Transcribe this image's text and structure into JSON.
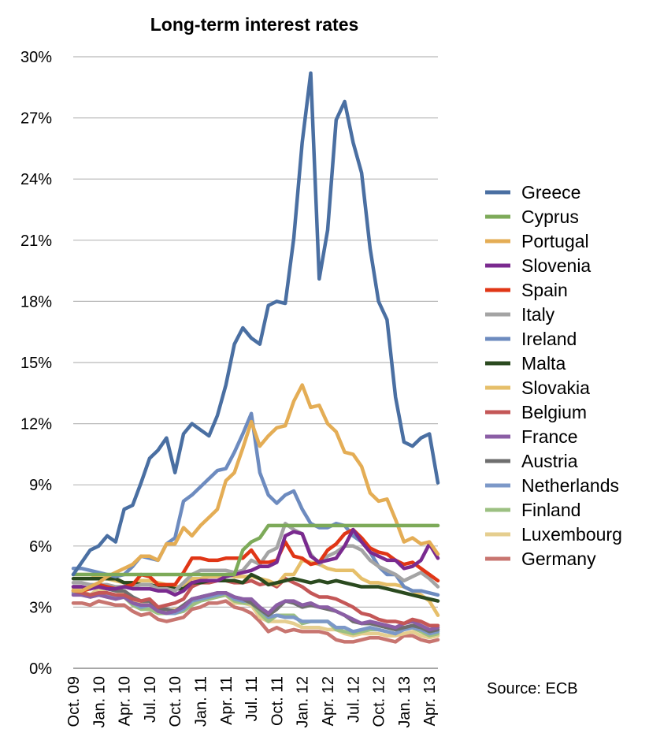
{
  "chart_data": {
    "type": "line",
    "title": "Long-term interest rates",
    "source": "Source: ECB",
    "x": [
      "Oct. 09",
      "Nov. 09",
      "Dec. 09",
      "Jan. 10",
      "Feb. 10",
      "Mar. 10",
      "Apr. 10",
      "May 10",
      "Jun. 10",
      "Jul. 10",
      "Aug. 10",
      "Sep. 10",
      "Oct. 10",
      "Nov. 10",
      "Dec. 10",
      "Jan. 11",
      "Feb. 11",
      "Mar. 11",
      "Apr. 11",
      "May 11",
      "Jun. 11",
      "Jul. 11",
      "Aug. 11",
      "Sep. 11",
      "Oct. 11",
      "Nov. 11",
      "Dec. 11",
      "Jan. 12",
      "Feb. 12",
      "Mar. 12",
      "Apr. 12",
      "May 12",
      "Jun. 12",
      "Jul. 12",
      "Aug. 12",
      "Sep. 12",
      "Oct. 12",
      "Nov. 12",
      "Dec. 12",
      "Jan. 13",
      "Feb. 13",
      "Mar. 13",
      "Apr. 13",
      "May 13"
    ],
    "x_tick_labels": [
      {
        "index": 0,
        "label": "Oct. 09"
      },
      {
        "index": 3,
        "label": "Jan. 10"
      },
      {
        "index": 6,
        "label": "Apr. 10"
      },
      {
        "index": 9,
        "label": "Jul. 10"
      },
      {
        "index": 12,
        "label": "Oct. 10"
      },
      {
        "index": 15,
        "label": "Jan. 11"
      },
      {
        "index": 18,
        "label": "Apr. 11"
      },
      {
        "index": 21,
        "label": "Jul. 11"
      },
      {
        "index": 24,
        "label": "Oct. 11"
      },
      {
        "index": 27,
        "label": "Jan. 12"
      },
      {
        "index": 30,
        "label": "Apr. 12"
      },
      {
        "index": 33,
        "label": "Jul. 12"
      },
      {
        "index": 36,
        "label": "Oct. 12"
      },
      {
        "index": 39,
        "label": "Jan. 13"
      },
      {
        "index": 42,
        "label": "Apr. 13"
      }
    ],
    "y_ticks": [
      0,
      3,
      6,
      9,
      12,
      15,
      18,
      21,
      24,
      27,
      30
    ],
    "y_tick_labels": [
      "0%",
      "3%",
      "6%",
      "9%",
      "12%",
      "15%",
      "18%",
      "21%",
      "24%",
      "27%",
      "30%"
    ],
    "ylim": [
      0,
      30
    ],
    "grid": true,
    "legend_position": "right",
    "series": [
      {
        "name": "Germany",
        "color": "#c87570",
        "values": [
          3.2,
          3.2,
          3.1,
          3.3,
          3.2,
          3.1,
          3.1,
          2.8,
          2.6,
          2.7,
          2.4,
          2.3,
          2.4,
          2.5,
          2.9,
          3.0,
          3.2,
          3.2,
          3.3,
          3.0,
          2.9,
          2.7,
          2.3,
          1.8,
          2.0,
          1.8,
          1.9,
          1.8,
          1.8,
          1.8,
          1.7,
          1.4,
          1.3,
          1.3,
          1.4,
          1.5,
          1.5,
          1.4,
          1.3,
          1.6,
          1.6,
          1.4,
          1.3,
          1.4
        ]
      },
      {
        "name": "Luxembourg",
        "color": "#e5ce8f",
        "values": [
          3.9,
          3.8,
          3.6,
          3.9,
          3.7,
          3.6,
          3.7,
          3.4,
          3.2,
          3.3,
          3.0,
          2.8,
          2.9,
          3.0,
          3.4,
          3.5,
          3.5,
          3.6,
          3.6,
          3.2,
          3.2,
          3.1,
          2.5,
          2.3,
          2.3,
          2.3,
          2.2,
          2.0,
          2.0,
          2.0,
          1.9,
          1.9,
          1.7,
          1.6,
          1.7,
          1.7,
          1.7,
          1.6,
          1.6,
          1.7,
          1.8,
          1.6,
          1.5,
          1.6
        ]
      },
      {
        "name": "Finland",
        "color": "#9cc082",
        "values": [
          3.7,
          3.6,
          3.5,
          3.6,
          3.5,
          3.4,
          3.5,
          3.1,
          2.9,
          2.9,
          2.7,
          2.7,
          2.7,
          2.8,
          3.1,
          3.3,
          3.4,
          3.5,
          3.6,
          3.3,
          3.2,
          3.2,
          2.7,
          2.3,
          2.6,
          2.6,
          2.6,
          2.2,
          2.3,
          2.3,
          2.3,
          1.9,
          1.8,
          1.7,
          1.8,
          1.9,
          1.9,
          1.8,
          1.7,
          2.0,
          2.0,
          1.8,
          1.6,
          1.7
        ]
      },
      {
        "name": "Netherlands",
        "color": "#7c98c8",
        "values": [
          3.7,
          3.7,
          3.6,
          3.7,
          3.6,
          3.5,
          3.5,
          3.2,
          3.0,
          3.1,
          2.8,
          2.7,
          2.7,
          2.9,
          3.3,
          3.4,
          3.5,
          3.6,
          3.7,
          3.4,
          3.3,
          3.3,
          2.9,
          2.5,
          2.6,
          2.5,
          2.5,
          2.3,
          2.3,
          2.3,
          2.3,
          2.0,
          2.0,
          1.8,
          1.9,
          2.0,
          1.9,
          1.8,
          1.7,
          1.9,
          2.0,
          1.9,
          1.7,
          1.8
        ]
      },
      {
        "name": "Austria",
        "color": "#6e6e6e",
        "values": [
          4.0,
          4.0,
          3.9,
          4.0,
          3.9,
          3.8,
          3.8,
          3.5,
          3.3,
          3.3,
          2.9,
          2.9,
          2.8,
          3.1,
          3.4,
          3.5,
          3.6,
          3.7,
          3.7,
          3.5,
          3.4,
          3.2,
          2.9,
          2.6,
          2.9,
          3.3,
          3.2,
          3.0,
          3.1,
          3.0,
          2.9,
          2.8,
          2.6,
          2.3,
          2.2,
          2.2,
          2.1,
          2.0,
          1.9,
          2.0,
          2.1,
          2.0,
          1.8,
          1.9
        ]
      },
      {
        "name": "France",
        "color": "#8b5ea5",
        "values": [
          3.6,
          3.6,
          3.5,
          3.6,
          3.5,
          3.4,
          3.5,
          3.2,
          3.1,
          3.1,
          2.8,
          2.7,
          2.8,
          3.0,
          3.4,
          3.5,
          3.6,
          3.7,
          3.7,
          3.5,
          3.4,
          3.4,
          3.0,
          2.7,
          3.1,
          3.3,
          3.3,
          3.1,
          3.2,
          3.0,
          3.0,
          2.8,
          2.6,
          2.4,
          2.2,
          2.3,
          2.2,
          2.1,
          2.0,
          2.2,
          2.3,
          2.1,
          1.9,
          2.0
        ]
      },
      {
        "name": "Belgium",
        "color": "#c45757",
        "values": [
          3.8,
          3.7,
          3.6,
          3.7,
          3.7,
          3.6,
          3.6,
          3.4,
          3.3,
          3.4,
          3.0,
          3.1,
          3.2,
          3.4,
          4.0,
          4.2,
          4.2,
          4.3,
          4.3,
          4.2,
          4.2,
          4.3,
          4.1,
          4.2,
          4.0,
          4.4,
          4.2,
          4.0,
          3.7,
          3.5,
          3.5,
          3.4,
          3.2,
          3.0,
          2.7,
          2.6,
          2.4,
          2.3,
          2.3,
          2.2,
          2.4,
          2.3,
          2.1,
          2.1
        ]
      },
      {
        "name": "Slovakia",
        "color": "#e6bf6a",
        "values": [
          4.6,
          4.6,
          4.6,
          4.5,
          4.4,
          4.3,
          4.2,
          4.2,
          4.3,
          4.3,
          4.2,
          4.1,
          4.0,
          4.0,
          4.4,
          4.4,
          4.5,
          4.5,
          4.6,
          4.5,
          4.5,
          4.5,
          4.4,
          4.3,
          4.1,
          4.6,
          4.6,
          5.3,
          5.2,
          5.1,
          4.9,
          4.8,
          4.8,
          4.8,
          4.4,
          4.2,
          4.2,
          4.1,
          4.1,
          4.0,
          3.8,
          3.6,
          3.3,
          2.6
        ]
      },
      {
        "name": "Malta",
        "color": "#2b4a1f",
        "values": [
          4.4,
          4.4,
          4.4,
          4.4,
          4.4,
          4.4,
          4.2,
          4.2,
          4.1,
          4.1,
          4.0,
          4.0,
          3.9,
          3.9,
          4.2,
          4.2,
          4.3,
          4.3,
          4.3,
          4.3,
          4.2,
          4.6,
          4.4,
          4.1,
          4.2,
          4.3,
          4.4,
          4.3,
          4.2,
          4.3,
          4.2,
          4.3,
          4.2,
          4.1,
          4.0,
          4.0,
          4.0,
          3.9,
          3.8,
          3.7,
          3.6,
          3.5,
          3.4,
          3.3
        ]
      },
      {
        "name": "Ireland",
        "color": "#6d8bbf",
        "values": [
          4.9,
          4.9,
          4.8,
          4.7,
          4.6,
          4.5,
          4.6,
          5.0,
          5.5,
          5.4,
          5.3,
          6.1,
          6.4,
          8.2,
          8.5,
          8.9,
          9.3,
          9.7,
          9.8,
          10.6,
          11.5,
          12.5,
          9.6,
          8.5,
          8.1,
          8.5,
          8.7,
          7.8,
          7.1,
          6.9,
          6.9,
          7.1,
          7.0,
          6.5,
          6.2,
          5.7,
          5.0,
          4.6,
          4.6,
          4.0,
          3.8,
          3.8,
          3.7,
          3.6
        ]
      },
      {
        "name": "Italy",
        "color": "#a4a4a4",
        "values": [
          4.2,
          4.2,
          4.1,
          4.1,
          4.1,
          4.0,
          4.0,
          4.0,
          4.1,
          4.1,
          3.9,
          3.9,
          3.8,
          4.2,
          4.6,
          4.8,
          4.8,
          4.8,
          4.8,
          4.7,
          4.8,
          5.3,
          5.1,
          5.7,
          5.9,
          7.1,
          6.8,
          6.6,
          5.6,
          5.1,
          5.5,
          5.7,
          6.0,
          6.0,
          5.8,
          5.3,
          5.0,
          4.8,
          4.6,
          4.3,
          4.5,
          4.7,
          4.4,
          4.0
        ]
      },
      {
        "name": "Spain",
        "color": "#e03616",
        "values": [
          3.8,
          3.8,
          3.9,
          4.1,
          4.0,
          3.9,
          4.0,
          4.1,
          4.6,
          4.5,
          4.1,
          4.1,
          4.1,
          4.7,
          5.4,
          5.4,
          5.3,
          5.3,
          5.4,
          5.4,
          5.4,
          5.8,
          5.2,
          5.2,
          5.3,
          6.2,
          5.5,
          5.4,
          5.1,
          5.2,
          5.8,
          6.1,
          6.6,
          6.8,
          6.4,
          5.9,
          5.7,
          5.6,
          5.3,
          5.1,
          5.2,
          4.9,
          4.6,
          4.3
        ]
      },
      {
        "name": "Slovenia",
        "color": "#7a2a8f",
        "values": [
          4.0,
          4.0,
          3.9,
          4.0,
          3.9,
          3.9,
          4.0,
          3.9,
          3.9,
          3.9,
          3.8,
          3.8,
          3.6,
          3.8,
          4.2,
          4.3,
          4.3,
          4.3,
          4.5,
          4.6,
          4.7,
          4.8,
          5.0,
          5.0,
          5.2,
          6.5,
          6.7,
          6.6,
          5.5,
          5.2,
          5.3,
          5.4,
          6.0,
          6.8,
          6.2,
          5.7,
          5.5,
          5.3,
          5.3,
          4.9,
          5.0,
          5.3,
          6.1,
          5.4
        ]
      },
      {
        "name": "Portugal",
        "color": "#e4ad55",
        "values": [
          3.8,
          3.8,
          4.0,
          4.2,
          4.5,
          4.7,
          4.9,
          5.1,
          5.5,
          5.5,
          5.3,
          6.1,
          6.1,
          6.9,
          6.5,
          7.0,
          7.4,
          7.8,
          9.2,
          9.6,
          10.8,
          12.1,
          10.9,
          11.4,
          11.8,
          11.9,
          13.1,
          13.9,
          12.8,
          12.9,
          12.0,
          11.6,
          10.6,
          10.5,
          9.9,
          8.6,
          8.2,
          8.3,
          7.3,
          6.2,
          6.4,
          6.1,
          6.2,
          5.6
        ]
      },
      {
        "name": "Cyprus",
        "color": "#7daa59",
        "values": [
          4.6,
          4.6,
          4.6,
          4.6,
          4.6,
          4.6,
          4.6,
          4.6,
          4.6,
          4.6,
          4.6,
          4.6,
          4.6,
          4.6,
          4.6,
          4.6,
          4.6,
          4.6,
          4.6,
          4.6,
          5.8,
          6.2,
          6.4,
          7.0,
          7.0,
          7.0,
          7.0,
          7.0,
          7.0,
          7.0,
          7.0,
          7.0,
          7.0,
          7.0,
          7.0,
          7.0,
          7.0,
          7.0,
          7.0,
          7.0,
          7.0,
          7.0,
          7.0,
          7.0
        ]
      },
      {
        "name": "Greece",
        "color": "#4a6fa2",
        "values": [
          4.6,
          5.2,
          5.8,
          6.0,
          6.5,
          6.2,
          7.8,
          8.0,
          9.1,
          10.3,
          10.7,
          11.3,
          9.6,
          11.5,
          12.0,
          11.7,
          11.4,
          12.4,
          13.9,
          15.9,
          16.7,
          16.2,
          15.9,
          17.8,
          18.0,
          17.9,
          21.1,
          25.8,
          29.2,
          19.1,
          21.5,
          26.9,
          27.8,
          25.8,
          24.3,
          20.6,
          18.0,
          17.1,
          13.3,
          11.1,
          10.9,
          11.3,
          11.5,
          9.1
        ]
      }
    ],
    "legend_order": [
      "Greece",
      "Cyprus",
      "Portugal",
      "Slovenia",
      "Spain",
      "Italy",
      "Ireland",
      "Malta",
      "Slovakia",
      "Belgium",
      "France",
      "Austria",
      "Netherlands",
      "Finland",
      "Luxembourg",
      "Germany"
    ]
  }
}
